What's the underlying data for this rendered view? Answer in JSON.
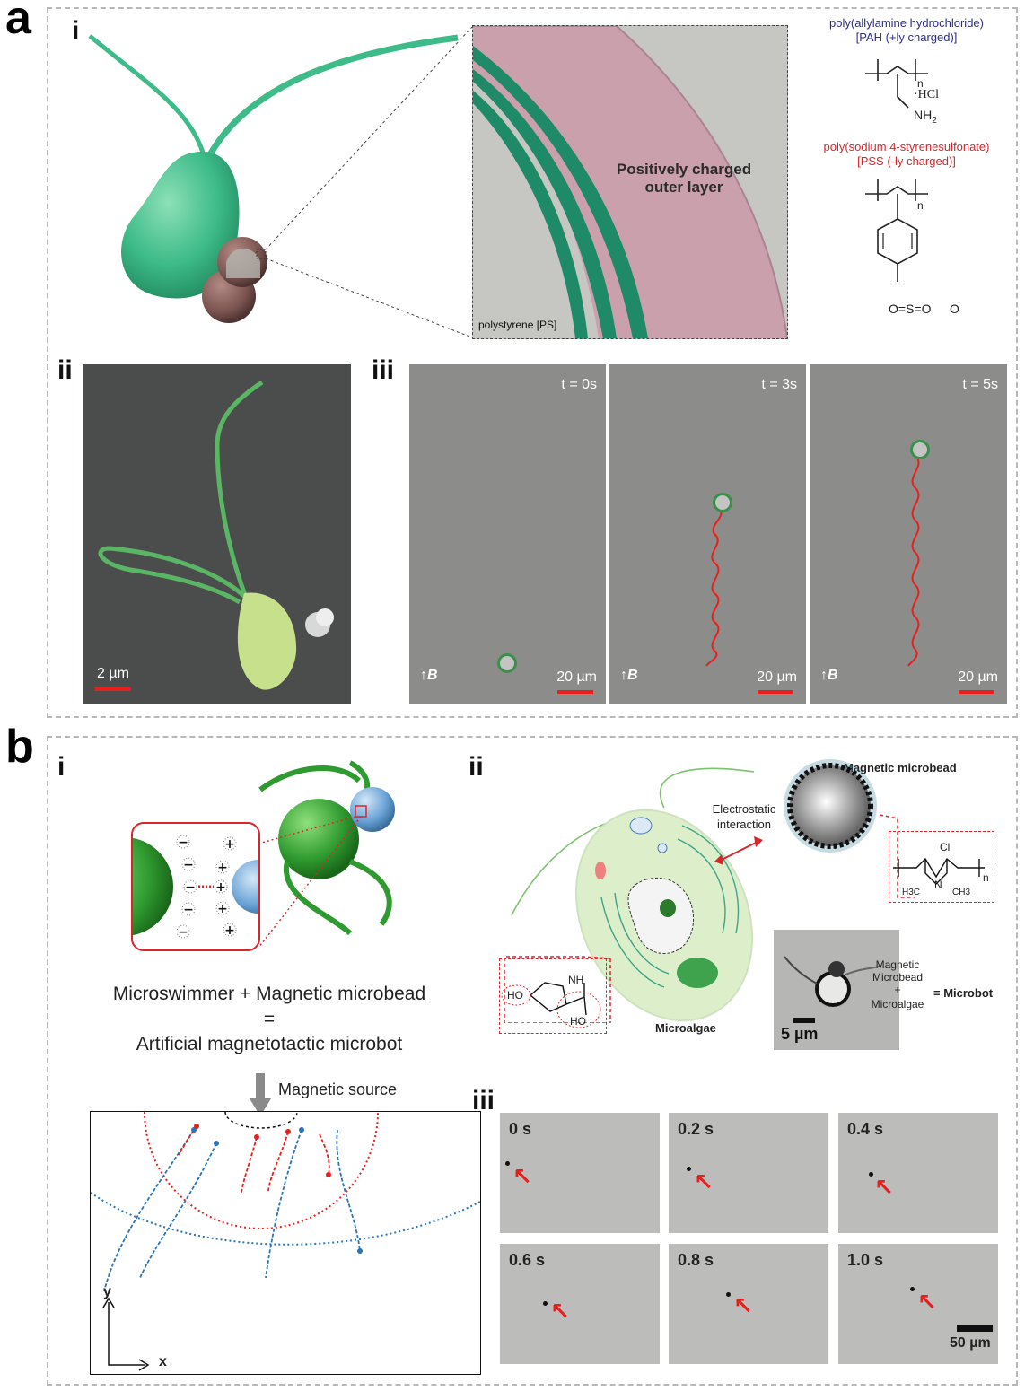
{
  "panel_a": {
    "letter": "a",
    "sub_i": "i",
    "sub_ii": "ii",
    "sub_iii": "iii",
    "layer_text": "Positively charged outer layer",
    "ps_label": "polystyrene [PS]",
    "pah_name": "poly(allylamine hydrochloride)",
    "pah_charge": "[PAH (+ly charged)]",
    "pss_name": "poly(sodium 4-styrenesulfonate)",
    "pss_charge": "[PSS (-ly charged)]",
    "hcl": "·HCl",
    "nh2": "NH",
    "nh2_sub": "2",
    "n_label": "n",
    "so3": "O=S=O",
    "o_minus": "O",
    "sem_scale": "2 µm",
    "frames": [
      {
        "time": "t = 0s",
        "scale": "20 µm",
        "field": "B"
      },
      {
        "time": "t = 3s",
        "scale": "20 µm",
        "field": "B"
      },
      {
        "time": "t = 5s",
        "scale": "20 µm",
        "field": "B"
      }
    ],
    "colors": {
      "cell": "#3dbb88",
      "bead": "#7a5450",
      "layer_pink": "#c9a0ab",
      "layer_green": "#1e8a67",
      "trajectory": "#e8201c",
      "pah_text": "#2d2d8c",
      "pss_text": "#d8262b"
    }
  },
  "panel_b": {
    "letter": "b",
    "sub_i": "i",
    "sub_ii": "ii",
    "sub_iii": "iii",
    "eq_line1": "Microswimmer + Magnetic microbead",
    "eq_line2": "=",
    "eq_line3": "Artificial magnetotactic microbot",
    "magnetic_source": "Magnetic source",
    "axis_y": "y",
    "axis_x": "x",
    "bead_title": "Magnetic microbead",
    "electrostatic": "Electrostatic interaction",
    "microalgae": "Microalgae",
    "formula_ho": "HO",
    "formula_nh": "NH",
    "formula_ho2": "HO",
    "formula_cl": "Cl",
    "formula_n": "N",
    "formula_h3c": "H3C",
    "formula_ch3": "CH3",
    "formula_sub_n": "n",
    "combo_line1": "Magnetic",
    "combo_line2": "Microbead",
    "combo_plus": "+",
    "combo_line3": "Microalgae",
    "combo_eq": "= Microbot",
    "inset_scale": "5 µm",
    "times": [
      "0 s",
      "0.2 s",
      "0.4 s",
      "0.6 s",
      "0.8 s",
      "1.0 s"
    ],
    "frame_scale": "50 µm",
    "colors": {
      "trajectory_red": "#e8201c",
      "trajectory_blue": "#2a74b8",
      "bead_blue": "#6aa3d6",
      "algae_green": "#3fa34d"
    }
  }
}
